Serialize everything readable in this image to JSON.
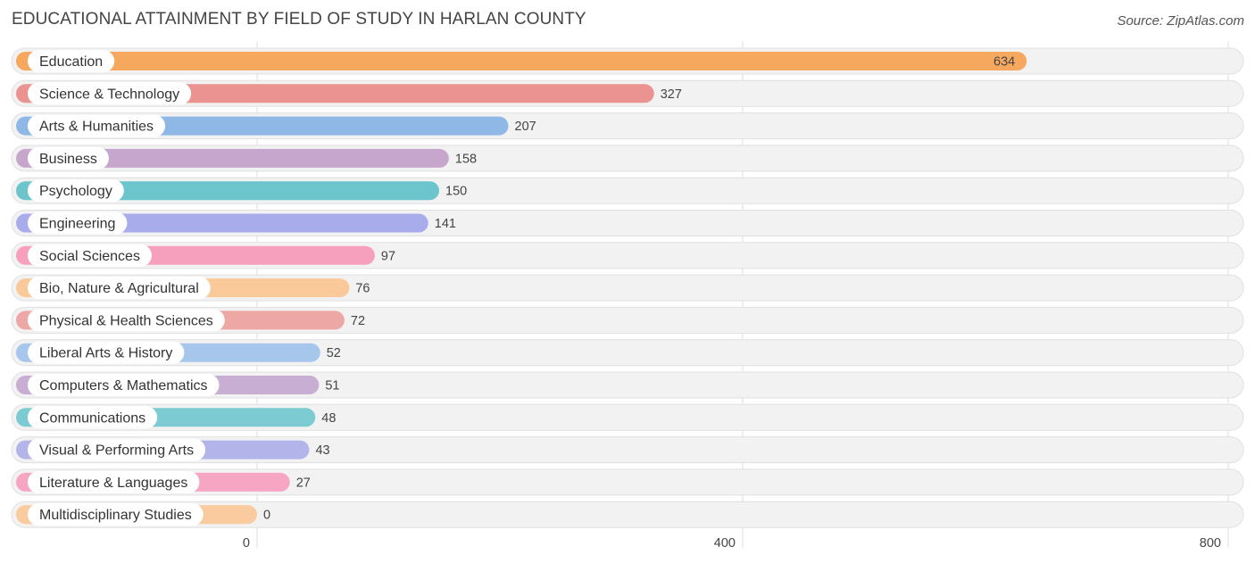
{
  "chart_data": {
    "type": "bar",
    "orientation": "horizontal",
    "title": "EDUCATIONAL ATTAINMENT BY FIELD OF STUDY IN HARLAN COUNTY",
    "source": "Source: ZipAtlas.com",
    "xlim": [
      0,
      800
    ],
    "ticks": [
      0,
      400,
      800
    ],
    "tick_labels": [
      "0",
      "400",
      "800"
    ],
    "categories": [
      "Education",
      "Science & Technology",
      "Arts & Humanities",
      "Business",
      "Psychology",
      "Engineering",
      "Social Sciences",
      "Bio, Nature & Agricultural",
      "Physical & Health Sciences",
      "Liberal Arts & History",
      "Computers & Mathematics",
      "Communications",
      "Visual & Performing Arts",
      "Literature & Languages",
      "Multidisciplinary Studies"
    ],
    "values": [
      634,
      327,
      207,
      158,
      150,
      141,
      97,
      76,
      72,
      52,
      51,
      48,
      43,
      27,
      0
    ],
    "value_labels": [
      "634",
      "327",
      "207",
      "158",
      "150",
      "141",
      "97",
      "76",
      "72",
      "52",
      "51",
      "48",
      "43",
      "27",
      "0"
    ],
    "colors": [
      "#f6a95e",
      "#ea9390",
      "#90b8e6",
      "#c6a6cd",
      "#6cc5cc",
      "#a9acea",
      "#f6a0bd",
      "#f9c99a",
      "#eda8a6",
      "#a7c6ec",
      "#c8aed2",
      "#7ccbd2",
      "#b3b5ea",
      "#f6a6c3",
      "#f9cb9e"
    ],
    "value_inside_bar": [
      true,
      false,
      false,
      false,
      false,
      false,
      false,
      false,
      false,
      false,
      false,
      false,
      false,
      false,
      false
    ]
  }
}
